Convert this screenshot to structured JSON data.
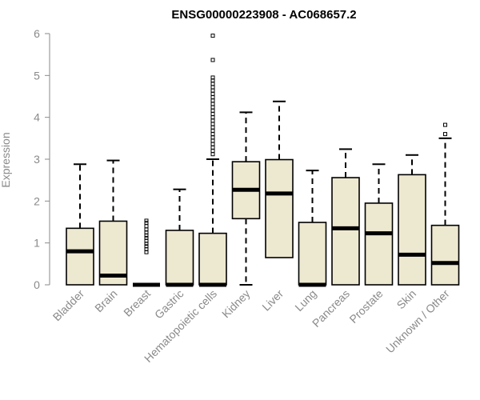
{
  "chart_data": {
    "type": "box",
    "title": "ENSG00000223908 - AC068657.2",
    "xlabel": "",
    "ylabel": "Expression",
    "ylim": [
      0,
      6
    ],
    "yticks": [
      0,
      1,
      2,
      3,
      4,
      5,
      6
    ],
    "grid": false,
    "box_fill": "#ede8d0",
    "box_stroke": "#000000",
    "categories": [
      "Bladder",
      "Brain",
      "Breast",
      "Gastric",
      "Hematopoietic cells",
      "Kidney",
      "Liver",
      "Lung",
      "Pancreas",
      "Prostate",
      "Skin",
      "Unknown / Other"
    ],
    "boxes": [
      {
        "whisker_low": 0,
        "q1": 0,
        "median": 0.8,
        "q3": 1.35,
        "whisker_high": 2.88,
        "outliers": []
      },
      {
        "whisker_low": 0,
        "q1": 0,
        "median": 0.22,
        "q3": 1.52,
        "whisker_high": 2.97,
        "outliers": []
      },
      {
        "whisker_low": 0,
        "q1": 0,
        "median": 0,
        "q3": 0,
        "whisker_high": 0,
        "outliers": [
          0.78,
          0.85,
          0.92,
          0.98,
          1.05,
          1.12,
          1.18,
          1.25,
          1.32,
          1.4,
          1.48,
          1.53
        ]
      },
      {
        "whisker_low": 0,
        "q1": 0,
        "median": 0,
        "q3": 1.3,
        "whisker_high": 2.28,
        "outliers": []
      },
      {
        "whisker_low": 0,
        "q1": 0,
        "median": 0,
        "q3": 1.23,
        "whisker_high": 3.0,
        "outliers": [
          3.12,
          3.2,
          3.28,
          3.36,
          3.44,
          3.52,
          3.6,
          3.68,
          3.76,
          3.84,
          3.92,
          4.0,
          4.08,
          4.16,
          4.24,
          4.32,
          4.4,
          4.48,
          4.56,
          4.64,
          4.72,
          4.8,
          4.88,
          4.95,
          5.37,
          5.95
        ]
      },
      {
        "whisker_low": 0,
        "q1": 1.58,
        "median": 2.27,
        "q3": 2.94,
        "whisker_high": 4.12,
        "outliers": []
      },
      {
        "whisker_low": 0.65,
        "q1": 0.65,
        "median": 2.18,
        "q3": 2.99,
        "whisker_high": 4.38,
        "outliers": []
      },
      {
        "whisker_low": 0,
        "q1": 0,
        "median": 0,
        "q3": 1.49,
        "whisker_high": 2.73,
        "outliers": []
      },
      {
        "whisker_low": 0,
        "q1": 0,
        "median": 1.35,
        "q3": 2.56,
        "whisker_high": 3.24,
        "outliers": []
      },
      {
        "whisker_low": 0,
        "q1": 0,
        "median": 1.23,
        "q3": 1.95,
        "whisker_high": 2.88,
        "outliers": []
      },
      {
        "whisker_low": 0,
        "q1": 0,
        "median": 0.72,
        "q3": 2.63,
        "whisker_high": 3.1,
        "outliers": []
      },
      {
        "whisker_low": 0,
        "q1": 0,
        "median": 0.52,
        "q3": 1.42,
        "whisker_high": 3.5,
        "outliers": [
          3.6,
          3.82
        ]
      }
    ]
  }
}
